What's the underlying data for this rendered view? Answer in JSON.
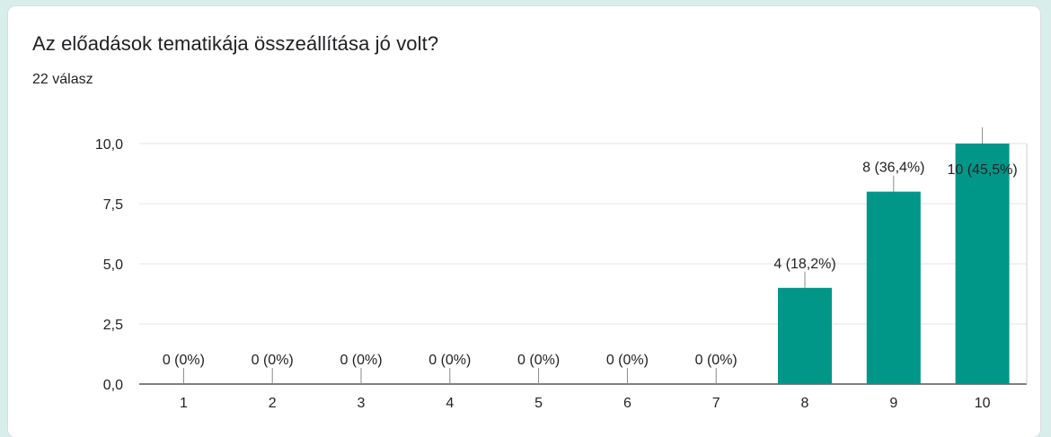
{
  "question": {
    "title": "Az előadások tematikája összeállítása jó volt?",
    "responses": "22 válasz"
  },
  "colors": {
    "bar": "#009688",
    "grid": "#e6e6e6",
    "axis": "#333333",
    "background": "#d8eeea"
  },
  "chart_data": {
    "type": "bar",
    "categories": [
      "1",
      "2",
      "3",
      "4",
      "5",
      "6",
      "7",
      "8",
      "9",
      "10"
    ],
    "values": [
      0,
      0,
      0,
      0,
      0,
      0,
      0,
      4,
      8,
      10
    ],
    "data_labels": [
      "0 (0%)",
      "0 (0%)",
      "0 (0%)",
      "0 (0%)",
      "0 (0%)",
      "0 (0%)",
      "0 (0%)",
      "4 (18,2%)",
      "8 (36,4%)",
      "10 (45,5%)"
    ],
    "y_ticks": [
      "0,0",
      "2,5",
      "5,0",
      "7,5",
      "10,0"
    ],
    "y_tick_values": [
      0,
      2.5,
      5,
      7.5,
      10
    ],
    "ylim": [
      0,
      10
    ],
    "grid": true
  }
}
